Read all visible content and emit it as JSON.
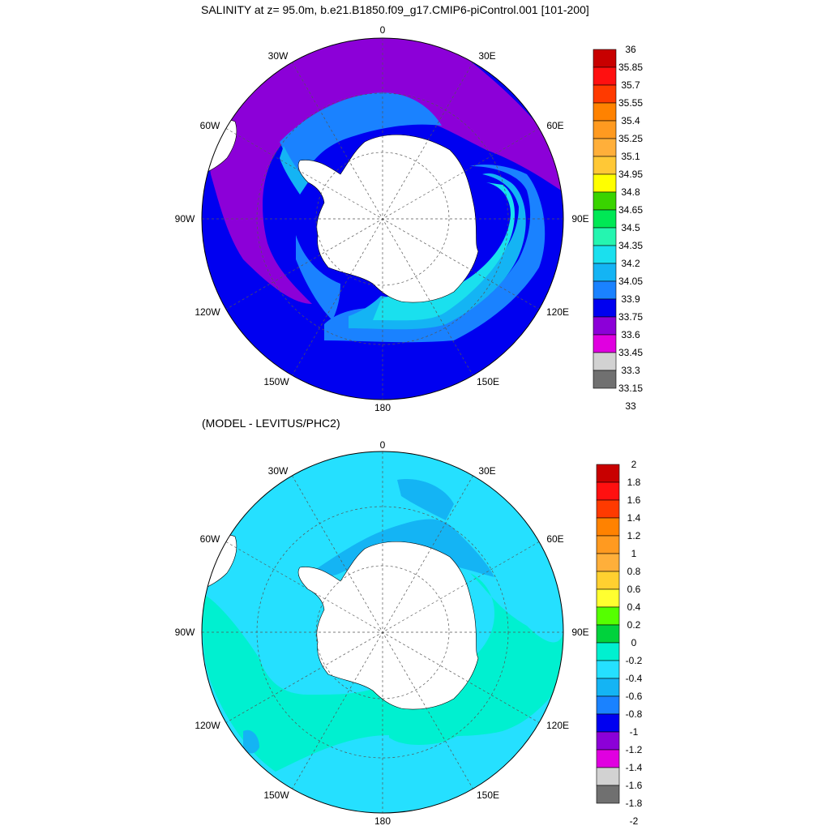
{
  "title": "SALINITY at z=  95.0m, b.e21.B1850.f09_g17.CMIP6-piControl.001 [101-200]",
  "subtitle": "(MODEL - LEVITUS/PHC2)",
  "projection": "south-polar-stereographic",
  "longitude_labels": {
    "top": "0",
    "bottom": "180",
    "left_upper": "30W",
    "left_mid_upper": "60W",
    "left": "90W",
    "left_mid_lower": "120W",
    "left_lower": "150W",
    "right_upper": "30E",
    "right_mid_upper": "60E",
    "right": "90E",
    "right_mid_lower": "120E",
    "right_lower": "150E"
  },
  "land_color": "#ffffff",
  "colorbar_top": {
    "labels": [
      "36",
      "35.85",
      "35.7",
      "35.55",
      "35.4",
      "35.25",
      "35.1",
      "34.95",
      "34.8",
      "34.65",
      "34.5",
      "34.35",
      "34.2",
      "34.05",
      "33.9",
      "33.75",
      "33.6",
      "33.45",
      "33.3",
      "33.15",
      "33"
    ],
    "colors": [
      "#c80000",
      "#ff1010",
      "#ff3a00",
      "#ff8200",
      "#ff9a20",
      "#ffaf3a",
      "#ffc836",
      "#ffff00",
      "#39d400",
      "#00e855",
      "#25f5b0",
      "#1ae0ee",
      "#14b4f4",
      "#1a82ff",
      "#0000f0",
      "#8c00d8",
      "#e000e0",
      "#d2d2d2",
      "#707070"
    ]
  },
  "colorbar_bottom": {
    "labels": [
      "2",
      "1.8",
      "1.6",
      "1.4",
      "1.2",
      "1",
      "0.8",
      "0.6",
      "0.4",
      "0.2",
      "0",
      "-0.2",
      "-0.4",
      "-0.6",
      "-0.8",
      "-1",
      "-1.2",
      "-1.4",
      "-1.6",
      "-1.8",
      "-2"
    ],
    "colors": [
      "#c80000",
      "#ff1010",
      "#ff3a00",
      "#ff8200",
      "#ff9a20",
      "#ffaf3a",
      "#ffd030",
      "#ffff30",
      "#55ff00",
      "#00d23c",
      "#00f0d0",
      "#25e0ff",
      "#14b4f4",
      "#1a82ff",
      "#0000f0",
      "#8c00d8",
      "#e000e0",
      "#d2d2d2",
      "#707070"
    ]
  }
}
